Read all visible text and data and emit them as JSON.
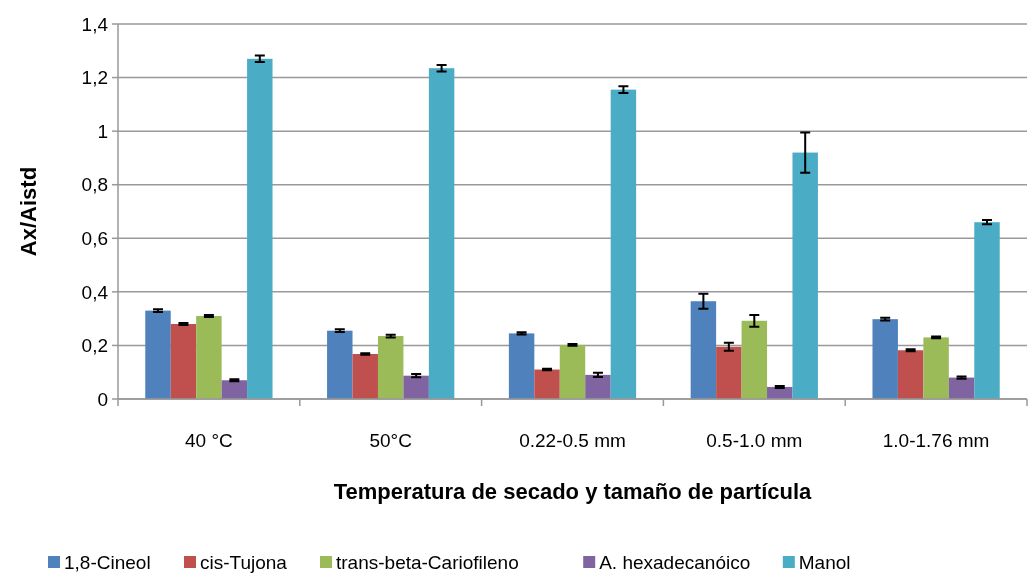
{
  "chart_data": {
    "type": "bar",
    "xlabel": "Temperatura de secado y tamaño de partícula",
    "ylabel": "Ax/Aistd",
    "categories": [
      "40 °C",
      "50°C",
      "0.22-0.5 mm",
      "0.5-1.0 mm",
      "1.0-1.76 mm"
    ],
    "series": [
      {
        "name": "1,8-Cineol",
        "color": "#4f81bd",
        "values": [
          0.33,
          0.255,
          0.245,
          0.365,
          0.298
        ],
        "errors": [
          0.005,
          0.005,
          0.004,
          0.028,
          0.005
        ]
      },
      {
        "name": "cis-Tujona",
        "color": "#c0504d",
        "values": [
          0.28,
          0.168,
          0.11,
          0.195,
          0.182
        ],
        "errors": [
          0.004,
          0.003,
          0.003,
          0.015,
          0.004
        ]
      },
      {
        "name": "trans-beta-Cariofileno",
        "color": "#9bbb59",
        "values": [
          0.31,
          0.235,
          0.202,
          0.292,
          0.23
        ],
        "errors": [
          0.004,
          0.005,
          0.003,
          0.022,
          0.003
        ]
      },
      {
        "name": "A. hexadecanóico",
        "color": "#8064a2",
        "values": [
          0.07,
          0.087,
          0.09,
          0.045,
          0.08
        ],
        "errors": [
          0.004,
          0.006,
          0.008,
          0.004,
          0.004
        ]
      },
      {
        "name": "Manol",
        "color": "#4bacc6",
        "values": [
          1.27,
          1.235,
          1.155,
          0.92,
          0.66
        ],
        "errors": [
          0.012,
          0.012,
          0.013,
          0.075,
          0.008
        ]
      }
    ],
    "ylim": [
      0,
      1.4
    ],
    "yticks": [
      0,
      {
        "value": 0.2,
        "label": "0,2"
      },
      {
        "value": 0.4,
        "label": "0,4"
      },
      {
        "value": 0.6,
        "label": "0,6"
      },
      {
        "value": 0.8,
        "label": "0,8"
      },
      1,
      {
        "value": 1.2,
        "label": "1,2"
      },
      {
        "value": 1.4,
        "label": "1,4"
      }
    ],
    "grid": "y",
    "legend": "bottom"
  }
}
